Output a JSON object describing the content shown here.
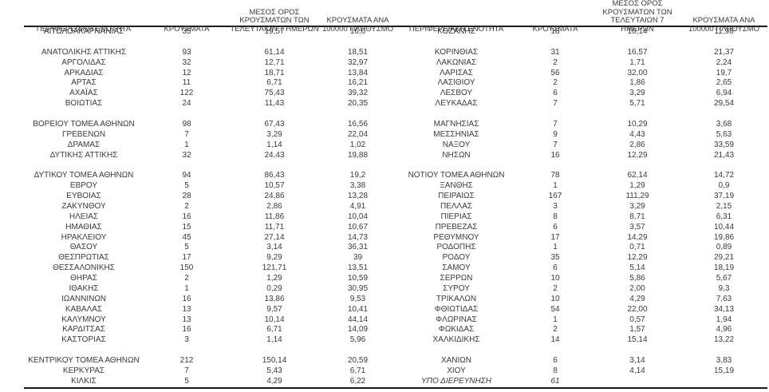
{
  "colors": {
    "text": "#3a3a3a",
    "rule": "#1a1a1a",
    "background": "#ffffff"
  },
  "table": {
    "headers": {
      "region": "ΠΕΡΙΦΕΡΕΙΑΚΗ ΕΝΟΤΗΤΑ",
      "cases": "ΚΡΟΥΣΜΑΤΑ",
      "avg7": "ΜΕΣΟΣ ΟΡΟΣ\nΚΡΟΥΣΜΑΤΩΝ ΤΩΝ\nΤΕΛΕΥΤΑΙΩΝ 7 ΗΜΕΡΩΝ",
      "per100k": "ΚΡΟΥΣΜΑΤΑ ΑΝΑ\n100000 ΠΛΗΘΥΣΜΟ"
    },
    "left_groups": [
      [
        {
          "region": "ΑΙΤΩΛΟΑΚΑΡΝΑΝΙΑΣ",
          "cases": "35",
          "avg7": "19,57",
          "per100k": "16,6"
        }
      ],
      [
        {
          "region": "ΑΝΑΤΟΛΙΚΗΣ ΑΤΤΙΚΗΣ",
          "cases": "93",
          "avg7": "61,14",
          "per100k": "18,51"
        },
        {
          "region": "ΑΡΓΟΛΙΔΑΣ",
          "cases": "32",
          "avg7": "12,71",
          "per100k": "32,97"
        },
        {
          "region": "ΑΡΚΑΔΙΑΣ",
          "cases": "12",
          "avg7": "18,71",
          "per100k": "13,84"
        },
        {
          "region": "ΑΡΤΑΣ",
          "cases": "11",
          "avg7": "6,71",
          "per100k": "16,21"
        },
        {
          "region": "ΑΧΑΪΑΣ",
          "cases": "122",
          "avg7": "75,43",
          "per100k": "39,32"
        },
        {
          "region": "ΒΟΙΩΤΙΑΣ",
          "cases": "24",
          "avg7": "11,43",
          "per100k": "20,35"
        }
      ],
      [
        {
          "region": "ΒΟΡΕΙΟΥ ΤΟΜΕΑ ΑΘΗΝΩΝ",
          "cases": "98",
          "avg7": "67,43",
          "per100k": "16,56"
        },
        {
          "region": "ΓΡΕΒΕΝΩΝ",
          "cases": "7",
          "avg7": "3,29",
          "per100k": "22,04"
        },
        {
          "region": "ΔΡΑΜΑΣ",
          "cases": "1",
          "avg7": "1,14",
          "per100k": "1,02"
        },
        {
          "region": "ΔΥΤΙΚΗΣ ΑΤΤΙΚΗΣ",
          "cases": "32",
          "avg7": "24,43",
          "per100k": "19,88"
        }
      ],
      [
        {
          "region": "ΔΥΤΙΚΟΥ ΤΟΜΕΑ ΑΘΗΝΩΝ",
          "cases": "94",
          "avg7": "86,43",
          "per100k": "19,2"
        },
        {
          "region": "ΕΒΡΟΥ",
          "cases": "5",
          "avg7": "10,57",
          "per100k": "3,38"
        },
        {
          "region": "ΕΥΒΟΙΑΣ",
          "cases": "28",
          "avg7": "24,86",
          "per100k": "13,28"
        },
        {
          "region": "ΖΑΚΥΝΘΟΥ",
          "cases": "2",
          "avg7": "2,86",
          "per100k": "4,91"
        },
        {
          "region": "ΗΛΕΙΑΣ",
          "cases": "16",
          "avg7": "11,86",
          "per100k": "10,04"
        },
        {
          "region": "ΗΜΑΘΙΑΣ",
          "cases": "15",
          "avg7": "11,71",
          "per100k": "10,67"
        },
        {
          "region": "ΗΡΑΚΛΕΙΟΥ",
          "cases": "45",
          "avg7": "27,14",
          "per100k": "14,73"
        },
        {
          "region": "ΘΑΣΟΥ",
          "cases": "5",
          "avg7": "3,14",
          "per100k": "36,31"
        },
        {
          "region": "ΘΕΣΠΡΩΤΙΑΣ",
          "cases": "17",
          "avg7": "9,29",
          "per100k": "39"
        },
        {
          "region": "ΘΕΣΣΑΛΟΝΙΚΗΣ",
          "cases": "150",
          "avg7": "121,71",
          "per100k": "13,51"
        },
        {
          "region": "ΘΗΡΑΣ",
          "cases": "2",
          "avg7": "1,29",
          "per100k": "10,59"
        },
        {
          "region": "ΙΘΑΚΗΣ",
          "cases": "1",
          "avg7": "0,29",
          "per100k": "30,95"
        },
        {
          "region": "ΙΩΑΝΝΙΝΩΝ",
          "cases": "16",
          "avg7": "13,86",
          "per100k": "9,53"
        },
        {
          "region": "ΚΑΒΑΛΑΣ",
          "cases": "13",
          "avg7": "9,57",
          "per100k": "10,41"
        },
        {
          "region": "ΚΑΛΥΜΝΟΥ",
          "cases": "13",
          "avg7": "10,14",
          "per100k": "44,14"
        },
        {
          "region": "ΚΑΡΔΙΤΣΑΣ",
          "cases": "16",
          "avg7": "6,71",
          "per100k": "14,09"
        },
        {
          "region": "ΚΑΣΤΟΡΙΑΣ",
          "cases": "3",
          "avg7": "1,14",
          "per100k": "5,96"
        }
      ],
      [
        {
          "region": "ΚΕΝΤΡΙΚΟΥ ΤΟΜΕΑ ΑΘΗΝΩΝ",
          "cases": "212",
          "avg7": "150,14",
          "per100k": "20,59"
        },
        {
          "region": "ΚΕΡΚΥΡΑΣ",
          "cases": "7",
          "avg7": "5,43",
          "per100k": "6,71"
        },
        {
          "region": "ΚΙΛΚΙΣ",
          "cases": "5",
          "avg7": "4,29",
          "per100k": "6,22"
        }
      ]
    ],
    "right_groups": [
      [
        {
          "region": "ΚΟΖΑΝΗΣ",
          "cases": "18",
          "avg7": "10,14",
          "per100k": "11,98"
        }
      ],
      [
        {
          "region": "ΚΟΡΙΝΘΙΑΣ",
          "cases": "31",
          "avg7": "16,57",
          "per100k": "21,37"
        },
        {
          "region": "ΛΑΚΩΝΙΑΣ",
          "cases": "2",
          "avg7": "1,71",
          "per100k": "2,24"
        },
        {
          "region": "ΛΑΡΙΣΑΣ",
          "cases": "56",
          "avg7": "32,00",
          "per100k": "19,7"
        },
        {
          "region": "ΛΑΣΙΘΙΟΥ",
          "cases": "2",
          "avg7": "1,86",
          "per100k": "2,65"
        },
        {
          "region": "ΛΕΣΒΟΥ",
          "cases": "6",
          "avg7": "3,29",
          "per100k": "6,94"
        },
        {
          "region": "ΛΕΥΚΑΔΑΣ",
          "cases": "7",
          "avg7": "5,71",
          "per100k": "29,54"
        }
      ],
      [
        {
          "region": "ΜΑΓΝΗΣΙΑΣ",
          "cases": "7",
          "avg7": "10,29",
          "per100k": "3,68"
        },
        {
          "region": "ΜΕΣΣΗΝΙΑΣ",
          "cases": "9",
          "avg7": "4,43",
          "per100k": "5,63"
        },
        {
          "region": "ΝΑΞΟΥ",
          "cases": "7",
          "avg7": "2,86",
          "per100k": "33,59"
        },
        {
          "region": "ΝΗΣΩΝ",
          "cases": "16",
          "avg7": "12,29",
          "per100k": "21,43"
        }
      ],
      [
        {
          "region": "ΝΟΤΙΟΥ ΤΟΜΕΑ ΑΘΗΝΩΝ",
          "cases": "78",
          "avg7": "62,14",
          "per100k": "14,72"
        },
        {
          "region": "ΞΑΝΘΗΣ",
          "cases": "1",
          "avg7": "1,29",
          "per100k": "0,9"
        },
        {
          "region": "ΠΕΙΡΑΙΩΣ",
          "cases": "167",
          "avg7": "111,29",
          "per100k": "37,19"
        },
        {
          "region": "ΠΕΛΛΑΣ",
          "cases": "3",
          "avg7": "3,29",
          "per100k": "2,15"
        },
        {
          "region": "ΠΙΕΡΙΑΣ",
          "cases": "8",
          "avg7": "8,71",
          "per100k": "6,31"
        },
        {
          "region": "ΠΡΕΒΕΖΑΣ",
          "cases": "6",
          "avg7": "3,57",
          "per100k": "10,44"
        },
        {
          "region": "ΡΕΘΥΜΝΟΥ",
          "cases": "17",
          "avg7": "14,29",
          "per100k": "19,86"
        },
        {
          "region": "ΡΟΔΟΠΗΣ",
          "cases": "1",
          "avg7": "0,71",
          "per100k": "0,89"
        },
        {
          "region": "ΡΟΔΟΥ",
          "cases": "35",
          "avg7": "12,29",
          "per100k": "29,21"
        },
        {
          "region": "ΣΑΜΟΥ",
          "cases": "6",
          "avg7": "5,14",
          "per100k": "18,19"
        },
        {
          "region": "ΣΕΡΡΩΝ",
          "cases": "10",
          "avg7": "5,86",
          "per100k": "5,67"
        },
        {
          "region": "ΣΥΡΟΥ",
          "cases": "2",
          "avg7": "2,00",
          "per100k": "9,3"
        },
        {
          "region": "ΤΡΙΚΑΛΩΝ",
          "cases": "10",
          "avg7": "4,29",
          "per100k": "7,63"
        },
        {
          "region": "ΦΘΙΩΤΙΔΑΣ",
          "cases": "54",
          "avg7": "22,00",
          "per100k": "34,13"
        },
        {
          "region": "ΦΛΩΡΙΝΑΣ",
          "cases": "1",
          "avg7": "0,57",
          "per100k": "1,94"
        },
        {
          "region": "ΦΩΚΙΔΑΣ",
          "cases": "2",
          "avg7": "1,57",
          "per100k": "4,96"
        },
        {
          "region": "ΧΑΛΚΙΔΙΚΗΣ",
          "cases": "14",
          "avg7": "15,14",
          "per100k": "13,22"
        }
      ],
      [
        {
          "region": "ΧΑΝΙΩΝ",
          "cases": "6",
          "avg7": "3,14",
          "per100k": "3,83"
        },
        {
          "region": "ΧΙΟΥ",
          "cases": "8",
          "avg7": "4,14",
          "per100k": "15,19"
        },
        {
          "region": "ΥΠΟ ΔΙΕΡΕΥΝΗΣΗ",
          "cases": "61",
          "avg7": "",
          "per100k": "",
          "italic": true
        }
      ]
    ]
  }
}
